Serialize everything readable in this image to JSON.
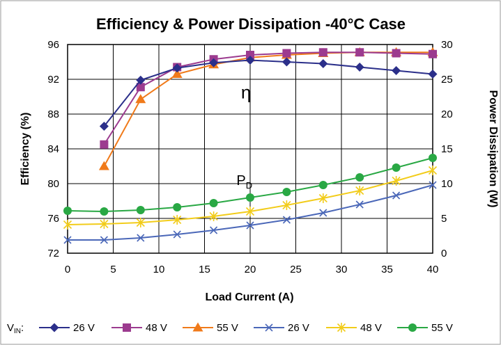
{
  "chart_data": {
    "type": "line",
    "title": "Efficiency & Power Dissipation -40°C Case",
    "xlabel": "Load Current (A)",
    "ylabel": "Efficiency (%)",
    "y2label": "Power Dissipation (W)",
    "xlim": [
      0,
      40
    ],
    "ylim": [
      72,
      96
    ],
    "y2lim": [
      0,
      30
    ],
    "xticks": [
      "0",
      "5",
      "10",
      "15",
      "20",
      "25",
      "30",
      "35",
      "40"
    ],
    "yticks": [
      "72",
      "76",
      "80",
      "84",
      "88",
      "92",
      "96"
    ],
    "y2ticks": [
      "0",
      "5",
      "10",
      "15",
      "20",
      "25",
      "30"
    ],
    "grid": true,
    "legend_prefix_main": "V",
    "legend_prefix_sub": "IN",
    "legend_prefix_suffix": ":",
    "annotations": [
      {
        "text": "η",
        "x": 19,
        "y": 89.8,
        "axis": "left"
      },
      {
        "text": "P",
        "sub": "D",
        "x": 18.5,
        "y": 9.8,
        "axis": "right"
      }
    ],
    "series": [
      {
        "name": "26 V",
        "axis": "left",
        "color": "#2b2f8a",
        "marker": "diamond",
        "x": [
          4,
          8,
          12,
          16,
          20,
          24,
          28,
          32,
          36,
          40
        ],
        "y": [
          86.6,
          91.9,
          93.3,
          93.9,
          94.2,
          94.0,
          93.8,
          93.4,
          93.0,
          92.6
        ]
      },
      {
        "name": "48 V",
        "axis": "left",
        "color": "#9c3b8f",
        "marker": "square",
        "x": [
          4,
          8,
          12,
          16,
          20,
          24,
          28,
          32,
          36,
          40
        ],
        "y": [
          84.5,
          91.1,
          93.4,
          94.3,
          94.8,
          95.0,
          95.1,
          95.1,
          95.0,
          94.9
        ]
      },
      {
        "name": "55 V",
        "axis": "left",
        "color": "#f07a1a",
        "marker": "triangle",
        "x": [
          4,
          8,
          12,
          16,
          20,
          24,
          28,
          32,
          36,
          40
        ],
        "y": [
          82.0,
          89.7,
          92.6,
          93.7,
          94.5,
          94.8,
          95.0,
          95.1,
          95.1,
          95.1
        ]
      },
      {
        "name": "26 V",
        "axis": "right",
        "color": "#4a67b8",
        "marker": "x",
        "x": [
          0,
          4,
          8,
          12,
          16,
          20,
          24,
          28,
          32,
          36,
          40
        ],
        "y": [
          1.9,
          1.9,
          2.2,
          2.7,
          3.3,
          4.0,
          4.8,
          5.8,
          7.0,
          8.3,
          9.8
        ]
      },
      {
        "name": "48 V",
        "axis": "right",
        "color": "#f2cc1a",
        "marker": "star",
        "x": [
          0,
          4,
          8,
          12,
          16,
          20,
          24,
          28,
          32,
          36,
          40
        ],
        "y": [
          4.1,
          4.2,
          4.4,
          4.8,
          5.3,
          6.0,
          6.9,
          7.9,
          9.0,
          10.4,
          11.9
        ]
      },
      {
        "name": "55 V",
        "axis": "right",
        "color": "#29a844",
        "marker": "circle",
        "x": [
          0,
          4,
          8,
          12,
          16,
          20,
          24,
          28,
          32,
          36,
          40
        ],
        "y": [
          6.1,
          6.0,
          6.2,
          6.6,
          7.2,
          8.0,
          8.8,
          9.8,
          10.9,
          12.3,
          13.7
        ]
      }
    ]
  }
}
